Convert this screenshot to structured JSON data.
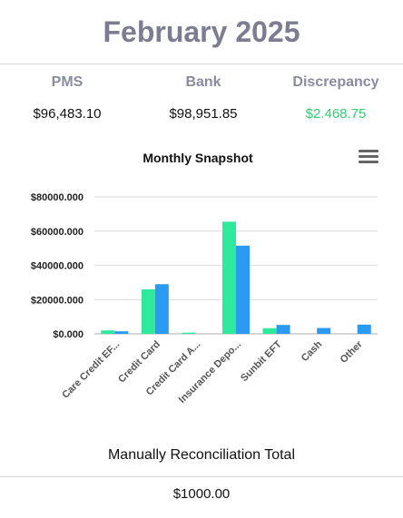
{
  "header": {
    "title": "February 2025"
  },
  "summary": {
    "pms": {
      "label": "PMS",
      "value": "$96,483.10"
    },
    "bank": {
      "label": "Bank",
      "value": "$98,951.85"
    },
    "discrepancy": {
      "label": "Discrepancy",
      "value": "$2.468.75",
      "color": "#2fcf72"
    }
  },
  "chart": {
    "menu_icon": "hamburger-menu-icon"
  },
  "chart_data": {
    "type": "bar",
    "title": "Monthly Snapshot",
    "categories": [
      "Care Credit EF...",
      "Credit Card",
      "Credit Card A...",
      "Insurance Depo...",
      "Sunbit EFT",
      "Cash",
      "Other"
    ],
    "series": [
      {
        "color": "#2ee89c",
        "values": [
          2000,
          26000,
          700,
          65500,
          3300,
          0,
          0
        ]
      },
      {
        "color": "#2b9af3",
        "values": [
          1500,
          29000,
          0,
          51500,
          5200,
          3400,
          5400
        ]
      }
    ],
    "y_ticks": [
      "$0.000",
      "$20000.000",
      "$40000.000",
      "$60000.000",
      "$80000.000"
    ],
    "ylim": [
      0,
      80000
    ],
    "grid": true,
    "legend": "none"
  },
  "reconciliation": {
    "label": "Manually Reconciliation Total",
    "value": "$1000.00"
  }
}
